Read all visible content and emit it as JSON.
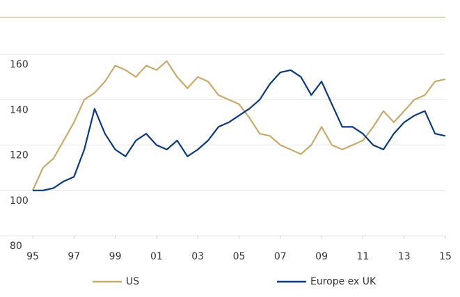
{
  "chart_data": {
    "type": "line",
    "x": [
      1995,
      1995.5,
      1996,
      1996.5,
      1997,
      1997.5,
      1998,
      1998.5,
      1999,
      1999.5,
      2000,
      2000.5,
      2001,
      2001.5,
      2002,
      2002.5,
      2003,
      2003.5,
      2004,
      2004.5,
      2005,
      2005.5,
      2006,
      2006.5,
      2007,
      2007.5,
      2008,
      2008.5,
      2009,
      2009.5,
      2010,
      2010.5,
      2011,
      2011.5,
      2012,
      2012.5,
      2013,
      2013.5,
      2014,
      2014.5,
      2015
    ],
    "series": [
      {
        "name": "US",
        "color": "#c9a96b",
        "values": [
          100,
          110,
          114,
          122,
          130,
          140,
          143,
          148,
          155,
          153,
          150,
          155,
          153,
          157,
          150,
          145,
          150,
          148,
          142,
          140,
          138,
          132,
          125,
          124,
          120,
          118,
          116,
          120,
          128,
          120,
          118,
          120,
          122,
          128,
          135,
          130,
          135,
          140,
          142,
          148,
          149
        ]
      },
      {
        "name": "Europe ex UK",
        "color": "#0b3a78",
        "values": [
          100,
          100,
          101,
          104,
          106,
          118,
          136,
          125,
          118,
          115,
          122,
          125,
          120,
          118,
          122,
          115,
          118,
          122,
          128,
          130,
          133,
          136,
          140,
          147,
          152,
          153,
          150,
          142,
          148,
          138,
          128,
          128,
          125,
          120,
          118,
          125,
          130,
          133,
          135,
          125,
          124
        ]
      }
    ],
    "xlim": [
      1995,
      2015
    ],
    "xticks": [
      {
        "value": 1995,
        "label": "95"
      },
      {
        "value": 1997,
        "label": "97"
      },
      {
        "value": 1999,
        "label": "99"
      },
      {
        "value": 2001,
        "label": "01"
      },
      {
        "value": 2003,
        "label": "03"
      },
      {
        "value": 2005,
        "label": "05"
      },
      {
        "value": 2007,
        "label": "07"
      },
      {
        "value": 2009,
        "label": "09"
      },
      {
        "value": 2011,
        "label": "11"
      },
      {
        "value": 2013,
        "label": "13"
      },
      {
        "value": 2015,
        "label": "15"
      }
    ],
    "ylim": [
      80,
      160
    ],
    "yticks": [
      80,
      100,
      120,
      140,
      160
    ],
    "grid": true
  }
}
